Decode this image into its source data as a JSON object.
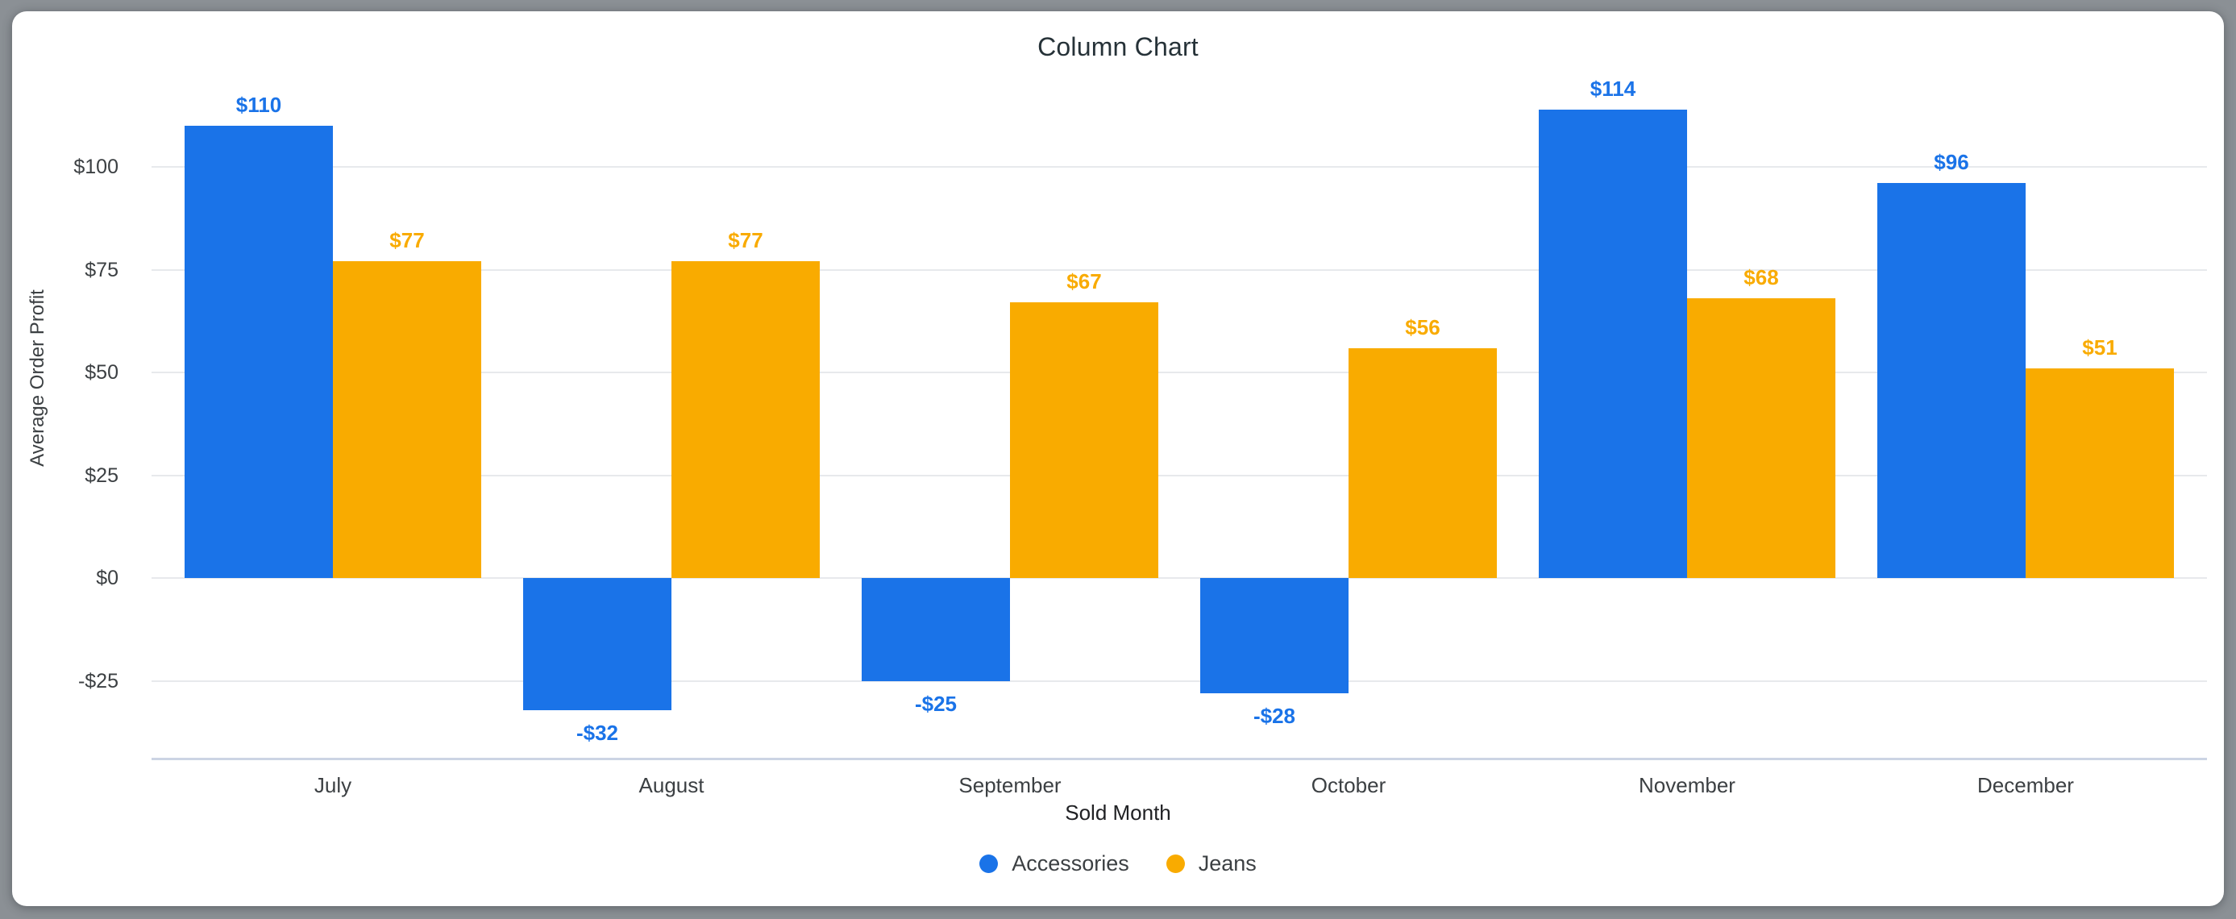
{
  "chart_data": {
    "type": "bar",
    "title": "Column Chart",
    "xlabel": "Sold Month",
    "ylabel": "Average Order Profit",
    "categories": [
      "July",
      "August",
      "September",
      "October",
      "November",
      "December"
    ],
    "series": [
      {
        "name": "Accessories",
        "color": "#1a73e8",
        "values": [
          110,
          -32,
          -25,
          -28,
          114,
          96
        ],
        "data_labels": [
          "$110",
          "-$32",
          "-$25",
          "-$28",
          "$114",
          "$96"
        ]
      },
      {
        "name": "Jeans",
        "color": "#f9ab00",
        "values": [
          77,
          77,
          67,
          56,
          68,
          51
        ],
        "data_labels": [
          "$77",
          "$77",
          "$67",
          "$56",
          "$68",
          "$51"
        ]
      }
    ],
    "y_axis": {
      "ticks": [
        {
          "value": 100,
          "label": "$100"
        },
        {
          "value": 75,
          "label": "$75"
        },
        {
          "value": 50,
          "label": "$50"
        },
        {
          "value": 25,
          "label": "$25"
        },
        {
          "value": 0,
          "label": "$0"
        },
        {
          "value": -25,
          "label": "-$25"
        }
      ]
    },
    "ylim": [
      -43.7,
      118.5
    ],
    "grid": true,
    "legend_position": "bottom"
  },
  "colors": {
    "series_accessories": "#1a73e8",
    "series_jeans": "#f9ab00",
    "gridline": "#e7e9ec",
    "axis_line": "#ccd4e4",
    "tick_text": "#3c4043",
    "title_text": "#263238",
    "card_background": "#ffffff",
    "outer_background": "#8b9095"
  }
}
